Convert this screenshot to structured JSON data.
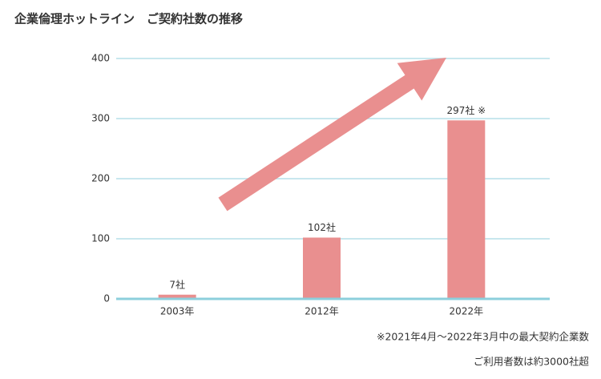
{
  "chart_data": {
    "type": "bar",
    "title": "企業倫理ホットライン　ご契約社数の推移",
    "categories": [
      "2003年",
      "2012年",
      "2022年"
    ],
    "values": [
      7,
      102,
      297
    ],
    "value_labels": [
      "7社",
      "102社",
      "297社 ※"
    ],
    "color": "#e98f8f",
    "ylim": [
      0,
      400
    ],
    "yticks": [
      0,
      100,
      200,
      300,
      400
    ],
    "grid": true,
    "notes": [
      "※2021年4月～2022年3月中の最大契約企業数",
      "ご利用者数は約3000社超"
    ]
  }
}
